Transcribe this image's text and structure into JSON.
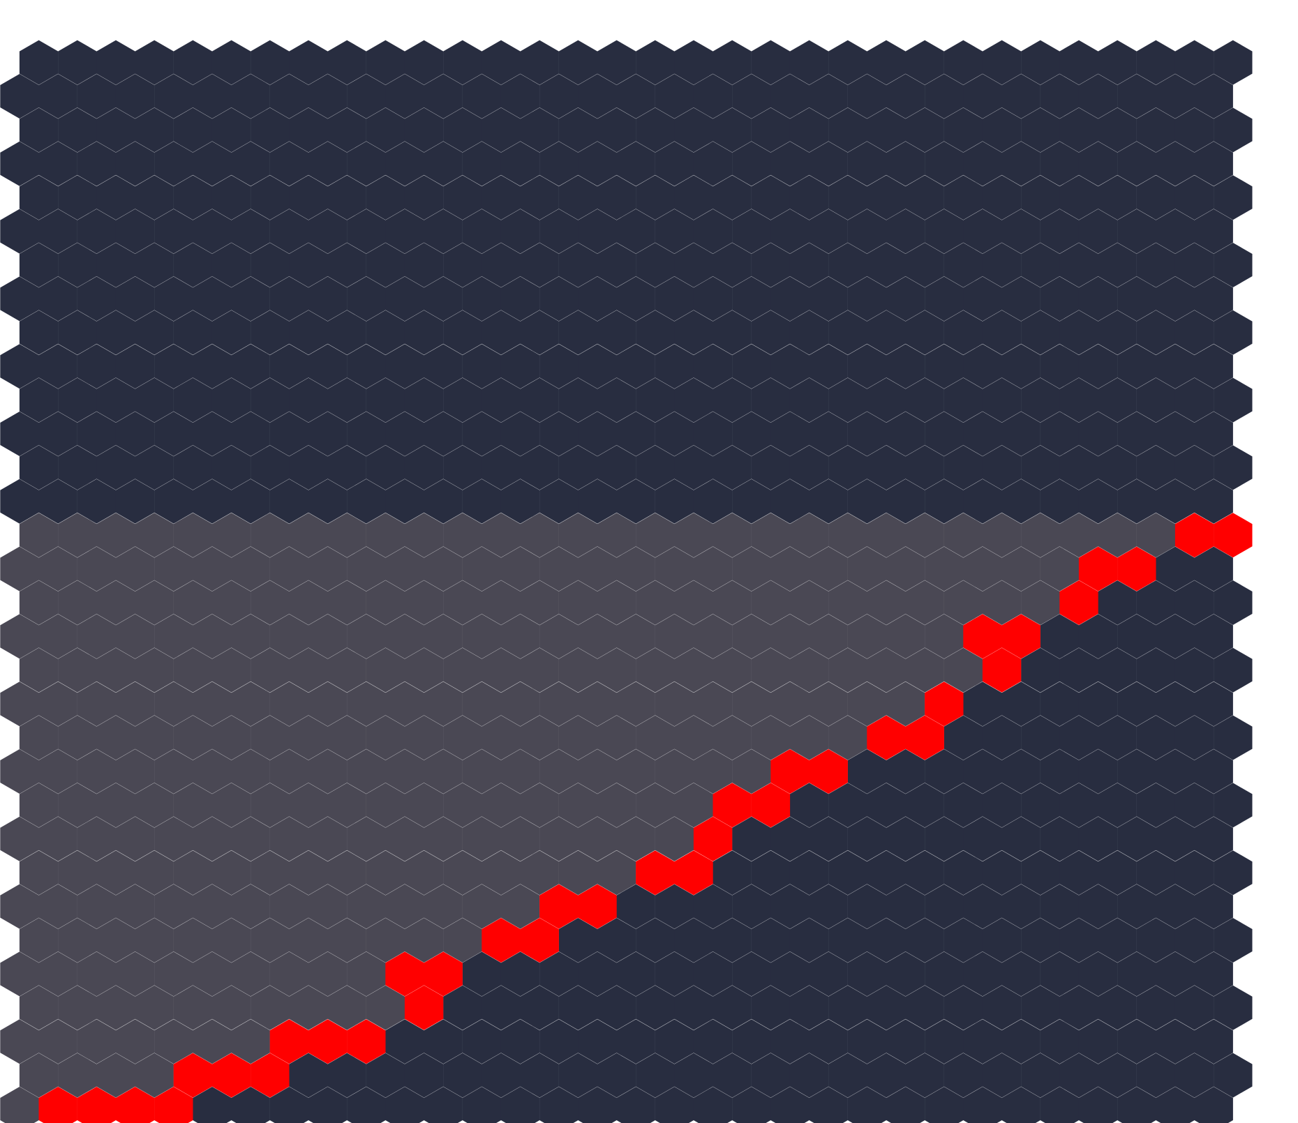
{
  "board": {
    "grid": {
      "columns": 32,
      "rows": 32
    },
    "colors": {
      "background": "#ffffff",
      "region_upper_left": "#4a4854",
      "region_lower_right": "#282d40",
      "path": "#ff0000"
    },
    "regions": [
      {
        "id": "upper-left",
        "color": "#4a4854"
      },
      {
        "id": "lower-right",
        "color": "#282d40"
      }
    ],
    "boundary_path": [
      [
        1,
        0
      ],
      [
        2,
        0
      ],
      [
        3,
        0
      ],
      [
        4,
        0
      ],
      [
        4,
        1
      ],
      [
        5,
        1
      ],
      [
        6,
        1
      ],
      [
        7,
        2
      ],
      [
        8,
        2
      ],
      [
        9,
        2
      ],
      [
        10,
        3
      ],
      [
        10,
        4
      ],
      [
        11,
        4
      ],
      [
        12,
        5
      ],
      [
        13,
        5
      ],
      [
        14,
        6
      ],
      [
        15,
        6
      ],
      [
        16,
        7
      ],
      [
        17,
        7
      ],
      [
        18,
        8
      ],
      [
        18,
        9
      ],
      [
        19,
        9
      ],
      [
        20,
        10
      ],
      [
        21,
        10
      ],
      [
        22,
        11
      ],
      [
        23,
        11
      ],
      [
        24,
        12
      ],
      [
        25,
        13
      ],
      [
        25,
        14
      ],
      [
        26,
        14
      ],
      [
        27,
        15
      ],
      [
        28,
        16
      ],
      [
        29,
        16
      ],
      [
        30,
        17
      ],
      [
        31,
        17
      ]
    ]
  }
}
